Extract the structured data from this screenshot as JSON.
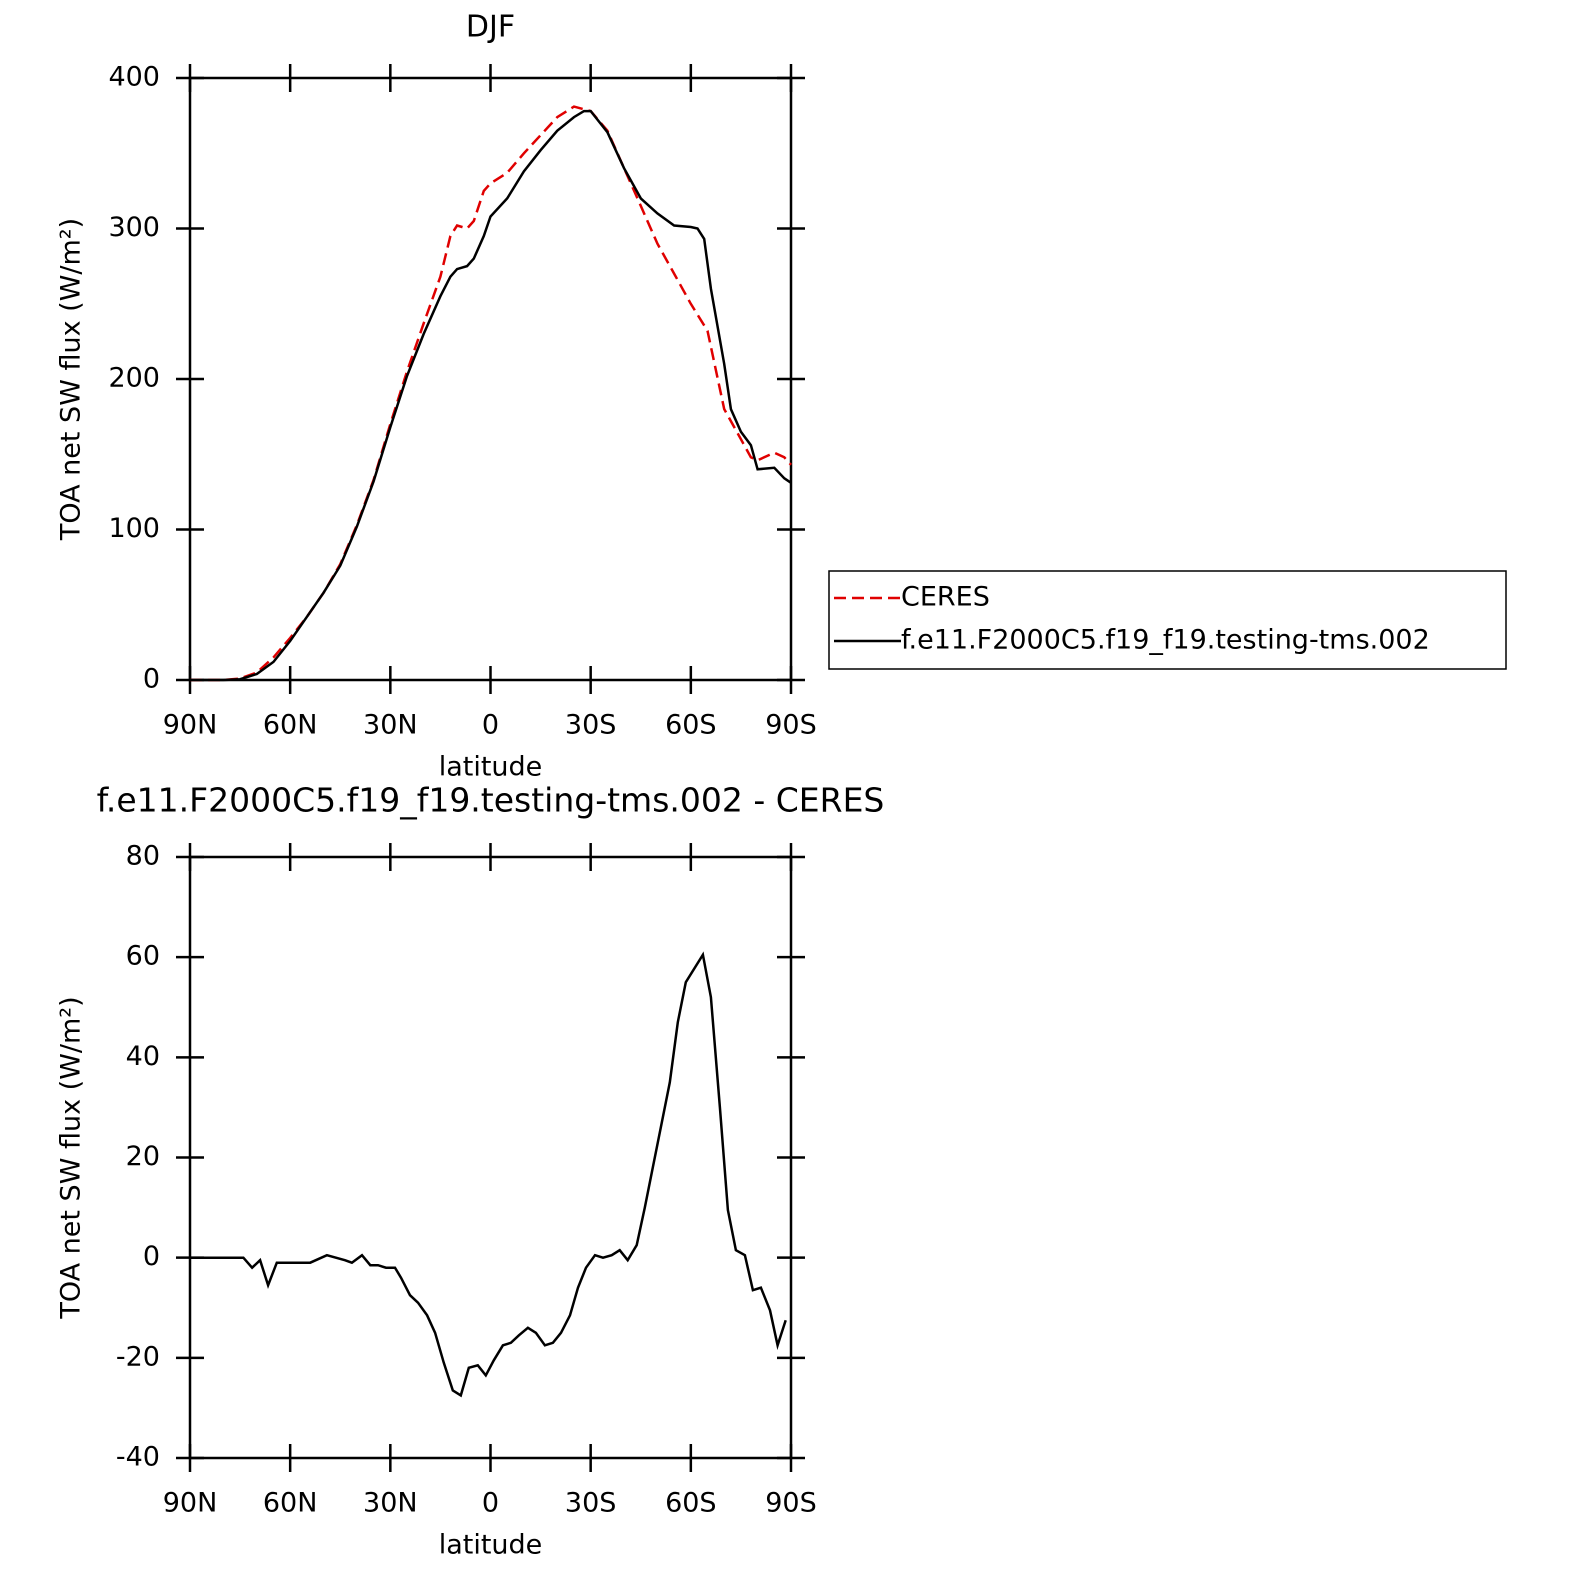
{
  "chart_data": [
    {
      "type": "line",
      "title": "DJF",
      "xlabel": "latitude",
      "ylabel": "TOA net SW flux (W/m²)",
      "xlim": [
        90,
        -90
      ],
      "ylim": [
        0,
        400
      ],
      "xticks": [
        {
          "value": 90,
          "label": "90N"
        },
        {
          "value": 60,
          "label": "60N"
        },
        {
          "value": 30,
          "label": "30N"
        },
        0,
        {
          "value": -30,
          "label": "30S"
        },
        {
          "value": -60,
          "label": "60S"
        },
        {
          "value": -90,
          "label": "90S"
        }
      ],
      "yticks": [
        0,
        100,
        200,
        300,
        400
      ],
      "series": [
        {
          "name": "CERES",
          "color": "#e00000",
          "dash": true,
          "x": [
            90,
            80,
            75,
            70,
            65,
            60,
            55,
            50,
            45,
            40,
            35,
            30,
            25,
            20,
            15,
            12,
            10,
            7,
            5,
            2,
            0,
            -5,
            -10,
            -15,
            -20,
            -25,
            -30,
            -35,
            -40,
            -45,
            -50,
            -55,
            -60,
            -65,
            -70,
            -75,
            -78,
            -80,
            -85,
            -88,
            -90
          ],
          "values": [
            0,
            0,
            1,
            5,
            15,
            28,
            42,
            58,
            77,
            103,
            133,
            170,
            205,
            237,
            268,
            295,
            302,
            300,
            305,
            325,
            330,
            337,
            350,
            362,
            374,
            381,
            378,
            365,
            340,
            315,
            290,
            270,
            250,
            232,
            180,
            160,
            148,
            146,
            151,
            148,
            143
          ]
        },
        {
          "name": "f.e11.F2000C5.f19_f19.testing-tms.002",
          "color": "#000000",
          "dash": false,
          "x": [
            90,
            80,
            75,
            70,
            65,
            60,
            55,
            50,
            45,
            40,
            35,
            30,
            25,
            20,
            15,
            12,
            10,
            7,
            5,
            2,
            0,
            -5,
            -10,
            -15,
            -20,
            -25,
            -28,
            -30,
            -35,
            -40,
            -45,
            -50,
            -55,
            -60,
            -62,
            -64,
            -66,
            -70,
            -72,
            -75,
            -78,
            -80,
            -85,
            -88,
            -90
          ],
          "values": [
            0,
            0,
            0.5,
            4,
            12,
            26,
            42,
            58,
            76,
            102,
            132,
            168,
            202,
            230,
            255,
            268,
            273,
            275,
            280,
            295,
            308,
            320,
            338,
            352,
            365,
            374,
            378,
            378,
            364,
            340,
            320,
            310,
            302,
            301,
            300,
            293,
            260,
            210,
            180,
            165,
            156,
            140,
            141,
            134,
            131
          ]
        }
      ]
    },
    {
      "type": "line",
      "title": "f.e11.F2000C5.f19_f19.testing-tms.002 - CERES",
      "xlabel": "latitude",
      "ylabel": "TOA net SW flux (W/m²)",
      "xlim": [
        90,
        -90
      ],
      "ylim": [
        -40,
        80
      ],
      "xticks": [
        {
          "value": 90,
          "label": "90N"
        },
        {
          "value": 60,
          "label": "60N"
        },
        {
          "value": 30,
          "label": "30N"
        },
        0,
        {
          "value": -30,
          "label": "30S"
        },
        {
          "value": -60,
          "label": "60S"
        },
        {
          "value": -90,
          "label": "90S"
        }
      ],
      "yticks": [
        -40,
        -20,
        0,
        20,
        40,
        60,
        80
      ],
      "series": [
        {
          "color": "#000000",
          "dash": false,
          "x": [
            90,
            74,
            71.4,
            69,
            66.6,
            64,
            60,
            54,
            49,
            43.6,
            41.5,
            38.5,
            36,
            33.7,
            31.3,
            28.6,
            26.8,
            24.1,
            21.7,
            19,
            16.6,
            14,
            11.3,
            8.9,
            6.5,
            3.8,
            1.4,
            -1,
            -3.7,
            -6.1,
            -8.5,
            -11.2,
            -13.6,
            -16.3,
            -18.7,
            -21.1,
            -23.8,
            -26.2,
            -28.6,
            -31.3,
            -33.7,
            -36.3,
            -38.7,
            -41.1,
            -43.8,
            -46.2,
            -48.6,
            -51,
            -53.7,
            -56.1,
            -58.5,
            -63.6,
            -66,
            -68.7,
            -71.1,
            -73.5,
            -76.2,
            -78.6,
            -81,
            -83.7,
            -86,
            -88.4
          ],
          "values": [
            0,
            0,
            -2,
            -0.5,
            -5.5,
            -1,
            -1,
            -1,
            0.5,
            -0.5,
            -1,
            0.5,
            -1.5,
            -1.5,
            -2,
            -2,
            -4,
            -7.5,
            -9,
            -11.5,
            -15,
            -21,
            -26.5,
            -27.5,
            -22,
            -21.5,
            -23.5,
            -20.5,
            -17.5,
            -17,
            -15.5,
            -14,
            -15,
            -17.5,
            -17,
            -15,
            -11.5,
            -6,
            -2,
            0.5,
            0,
            0.5,
            1.5,
            -0.5,
            2.5,
            10,
            18,
            26,
            35,
            47,
            55,
            60.5,
            52,
            30,
            9.5,
            1.5,
            0.5,
            -6.5,
            -6,
            -10.5,
            -17.5,
            -12.5
          ]
        }
      ]
    }
  ]
}
